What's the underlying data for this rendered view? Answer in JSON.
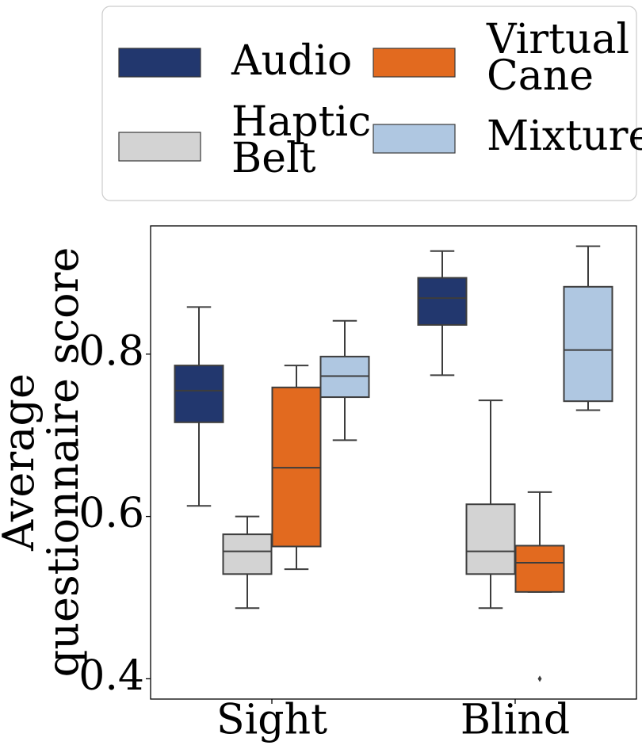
{
  "chart_data": {
    "type": "box",
    "ylabel_lines": [
      "Average",
      "questionnaire score"
    ],
    "xlabel": "",
    "categories": [
      "Sight",
      "Blind"
    ],
    "ylim": [
      0.375,
      0.958
    ],
    "yticks": [
      0.4,
      0.6,
      0.8
    ],
    "ytick_labels": [
      "0.4",
      "0.6",
      "0.8"
    ],
    "legend": {
      "placement": "above-plot",
      "columns": 2
    },
    "series": [
      {
        "name": "Audio",
        "label_lines": [
          "Audio"
        ],
        "color": "#22376e",
        "boxes": [
          {
            "category": "Sight",
            "whisker_low": 0.613,
            "q1": 0.716,
            "median": 0.755,
            "q3": 0.786,
            "whisker_high": 0.858,
            "outliers": []
          },
          {
            "category": "Blind",
            "whisker_low": 0.774,
            "q1": 0.836,
            "median": 0.869,
            "q3": 0.894,
            "whisker_high": 0.927,
            "outliers": []
          }
        ]
      },
      {
        "name": "Haptic Belt",
        "label_lines": [
          "Haptic",
          "Belt"
        ],
        "color": "#d3d3d3",
        "boxes": [
          {
            "category": "Sight",
            "whisker_low": 0.487,
            "q1": 0.529,
            "median": 0.557,
            "q3": 0.578,
            "whisker_high": 0.6,
            "outliers": []
          },
          {
            "category": "Blind",
            "whisker_low": 0.487,
            "q1": 0.529,
            "median": 0.557,
            "q3": 0.615,
            "whisker_high": 0.743,
            "outliers": []
          }
        ]
      },
      {
        "name": "Virtual Cane",
        "label_lines": [
          "Virtual",
          "Cane"
        ],
        "color": "#e26a1f",
        "boxes": [
          {
            "category": "Sight",
            "whisker_low": 0.535,
            "q1": 0.563,
            "median": 0.66,
            "q3": 0.759,
            "whisker_high": 0.786,
            "outliers": []
          },
          {
            "category": "Blind",
            "whisker_low": 0.507,
            "q1": 0.507,
            "median": 0.543,
            "q3": 0.564,
            "whisker_high": 0.63,
            "outliers": [
              0.4
            ]
          }
        ]
      },
      {
        "name": "Mixture",
        "label_lines": [
          "Mixture"
        ],
        "color": "#afc7e1",
        "boxes": [
          {
            "category": "Sight",
            "whisker_low": 0.694,
            "q1": 0.747,
            "median": 0.773,
            "q3": 0.797,
            "whisker_high": 0.841,
            "outliers": []
          },
          {
            "category": "Blind",
            "whisker_low": 0.731,
            "q1": 0.742,
            "median": 0.805,
            "q3": 0.883,
            "whisker_high": 0.933,
            "outliers": []
          }
        ]
      }
    ]
  }
}
